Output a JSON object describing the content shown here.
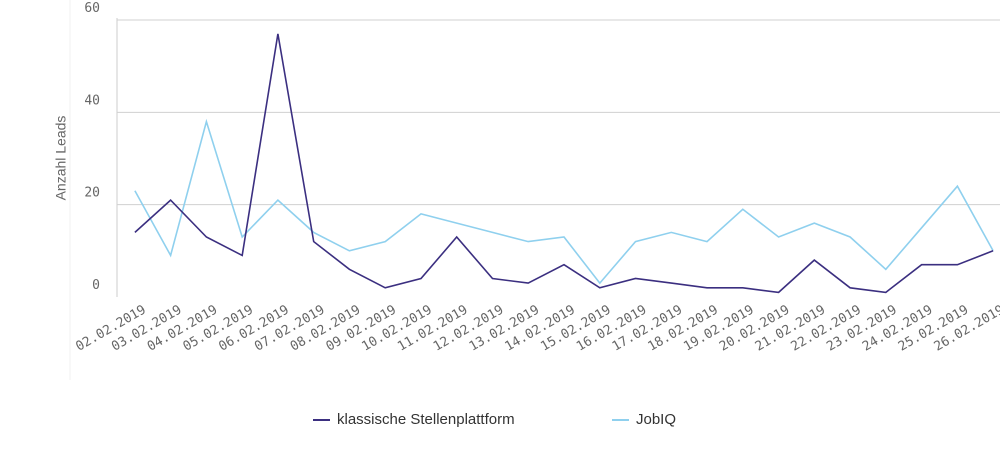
{
  "chart_data": {
    "type": "line",
    "y_label": "Anzahl Leads",
    "categories": [
      "02.02.2019",
      "03.02.2019",
      "04.02.2019",
      "05.02.2019",
      "06.02.2019",
      "07.02.2019",
      "08.02.2019",
      "09.02.2019",
      "10.02.2019",
      "11.02.2019",
      "12.02.2019",
      "13.02.2019",
      "14.02.2019",
      "15.02.2019",
      "16.02.2019",
      "17.02.2019",
      "18.02.2019",
      "19.02.2019",
      "20.02.2019",
      "21.02.2019",
      "22.02.2019",
      "23.02.2019",
      "24.02.2019",
      "25.02.2019",
      "26.02.2019"
    ],
    "series": [
      {
        "name": "klassische Stellenplattform",
        "color": "#3b2f80",
        "values": [
          14,
          21,
          13,
          9,
          57,
          12,
          6,
          2,
          4,
          13,
          4,
          3,
          7,
          2,
          4,
          3,
          2,
          2,
          1,
          8,
          2,
          1,
          7,
          7,
          10
        ]
      },
      {
        "name": "JobIQ",
        "color": "#8fd0ee",
        "values": [
          23,
          9,
          38,
          13,
          21,
          14,
          10,
          12,
          18,
          16,
          14,
          12,
          13,
          3,
          12,
          14,
          12,
          19,
          13,
          16,
          13,
          6,
          15,
          24,
          10
        ]
      }
    ],
    "ylim": [
      0,
      60
    ],
    "yticks": [
      0,
      20,
      40,
      60
    ],
    "grid": true,
    "legend": "bottom"
  }
}
